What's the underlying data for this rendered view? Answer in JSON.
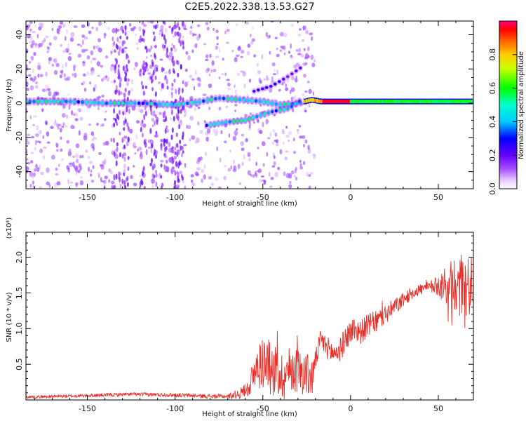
{
  "title": "C2E5.2022.338.13.53.G27",
  "chart_data": [
    {
      "type": "heatmap",
      "xlabel": "Height of straight line (km)",
      "ylabel": "Frequency (Hz)",
      "xlim": [
        -185,
        70
      ],
      "ylim": [
        -50,
        48
      ],
      "x_ticks": [
        -150,
        -100,
        -50,
        0,
        50
      ],
      "y_ticks": [
        -40,
        -20,
        0,
        20,
        40
      ],
      "colorbar": {
        "label": "Normalized spectral amplitude",
        "range": [
          0,
          1
        ],
        "ticks": [
          "0.0",
          "0.2",
          "0.4",
          "0.6",
          "0.8"
        ]
      },
      "ridges": [
        {
          "name": "main",
          "points": [
            [
              -185,
              1
            ],
            [
              -160,
              1
            ],
            [
              -140,
              0
            ],
            [
              -120,
              0
            ],
            [
              -100,
              -1
            ],
            [
              -85,
              1
            ],
            [
              -75,
              3
            ],
            [
              -50,
              1
            ],
            [
              -40,
              -1
            ],
            [
              -30,
              0
            ],
            [
              -22,
              2
            ],
            [
              -17,
              1
            ],
            [
              -10,
              1
            ],
            [
              0,
              1
            ],
            [
              20,
              1
            ],
            [
              50,
              1
            ],
            [
              70,
              1
            ]
          ]
        },
        {
          "name": "lower",
          "points": [
            [
              -82,
              -13
            ],
            [
              -70,
              -11
            ],
            [
              -60,
              -10
            ],
            [
              -45,
              -5
            ],
            [
              -35,
              -3
            ],
            [
              -28,
              2
            ]
          ]
        },
        {
          "name": "upper",
          "points": [
            [
              -55,
              7
            ],
            [
              -45,
              10
            ],
            [
              -35,
              16
            ],
            [
              -28,
              21
            ]
          ]
        }
      ]
    },
    {
      "type": "line",
      "xlabel": "Height of straight line (km)",
      "ylabel": "SNR (10 * v/v)",
      "y_exponent_label": "(x10⁴)",
      "xlim": [
        -185,
        70
      ],
      "ylim": [
        0,
        2.35
      ],
      "x_ticks": [
        -150,
        -100,
        -50,
        0,
        50
      ],
      "y_ticks": [
        0.5,
        1.0,
        1.5,
        2.0
      ],
      "y_tick_labels": [
        "0.5",
        "1.0",
        "1.5",
        "2.0"
      ],
      "color": "#e8302a",
      "envelope": [
        [
          -185,
          0.04
        ],
        [
          -150,
          0.06
        ],
        [
          -125,
          0.08
        ],
        [
          -100,
          0.07
        ],
        [
          -80,
          0.05
        ],
        [
          -70,
          0.05
        ],
        [
          -62,
          0.1
        ],
        [
          -58,
          0.2
        ],
        [
          -54,
          0.4
        ],
        [
          -50,
          0.55
        ],
        [
          -46,
          0.45
        ],
        [
          -42,
          0.4
        ],
        [
          -38,
          0.32
        ],
        [
          -34,
          0.45
        ],
        [
          -30,
          0.42
        ],
        [
          -26,
          0.38
        ],
        [
          -22,
          0.3
        ],
        [
          -20,
          0.55
        ],
        [
          -17,
          0.85
        ],
        [
          -14,
          0.75
        ],
        [
          -10,
          0.65
        ],
        [
          -6,
          0.7
        ],
        [
          -2,
          0.9
        ],
        [
          2,
          1.0
        ],
        [
          6,
          0.95
        ],
        [
          10,
          1.05
        ],
        [
          15,
          1.1
        ],
        [
          20,
          1.2
        ],
        [
          25,
          1.3
        ],
        [
          30,
          1.4
        ],
        [
          35,
          1.5
        ],
        [
          40,
          1.55
        ],
        [
          45,
          1.58
        ],
        [
          50,
          1.6
        ],
        [
          55,
          1.62
        ],
        [
          60,
          1.62
        ],
        [
          65,
          1.6
        ],
        [
          70,
          1.6
        ]
      ],
      "noise_envelope": [
        [
          -185,
          0.02
        ],
        [
          -70,
          0.03
        ],
        [
          -60,
          0.1
        ],
        [
          -50,
          0.4
        ],
        [
          -40,
          0.35
        ],
        [
          -22,
          0.3
        ],
        [
          -20,
          0.15
        ],
        [
          0,
          0.18
        ],
        [
          20,
          0.15
        ],
        [
          30,
          0.1
        ],
        [
          45,
          0.08
        ],
        [
          50,
          0.15
        ],
        [
          60,
          0.45
        ],
        [
          70,
          0.4
        ]
      ]
    }
  ]
}
